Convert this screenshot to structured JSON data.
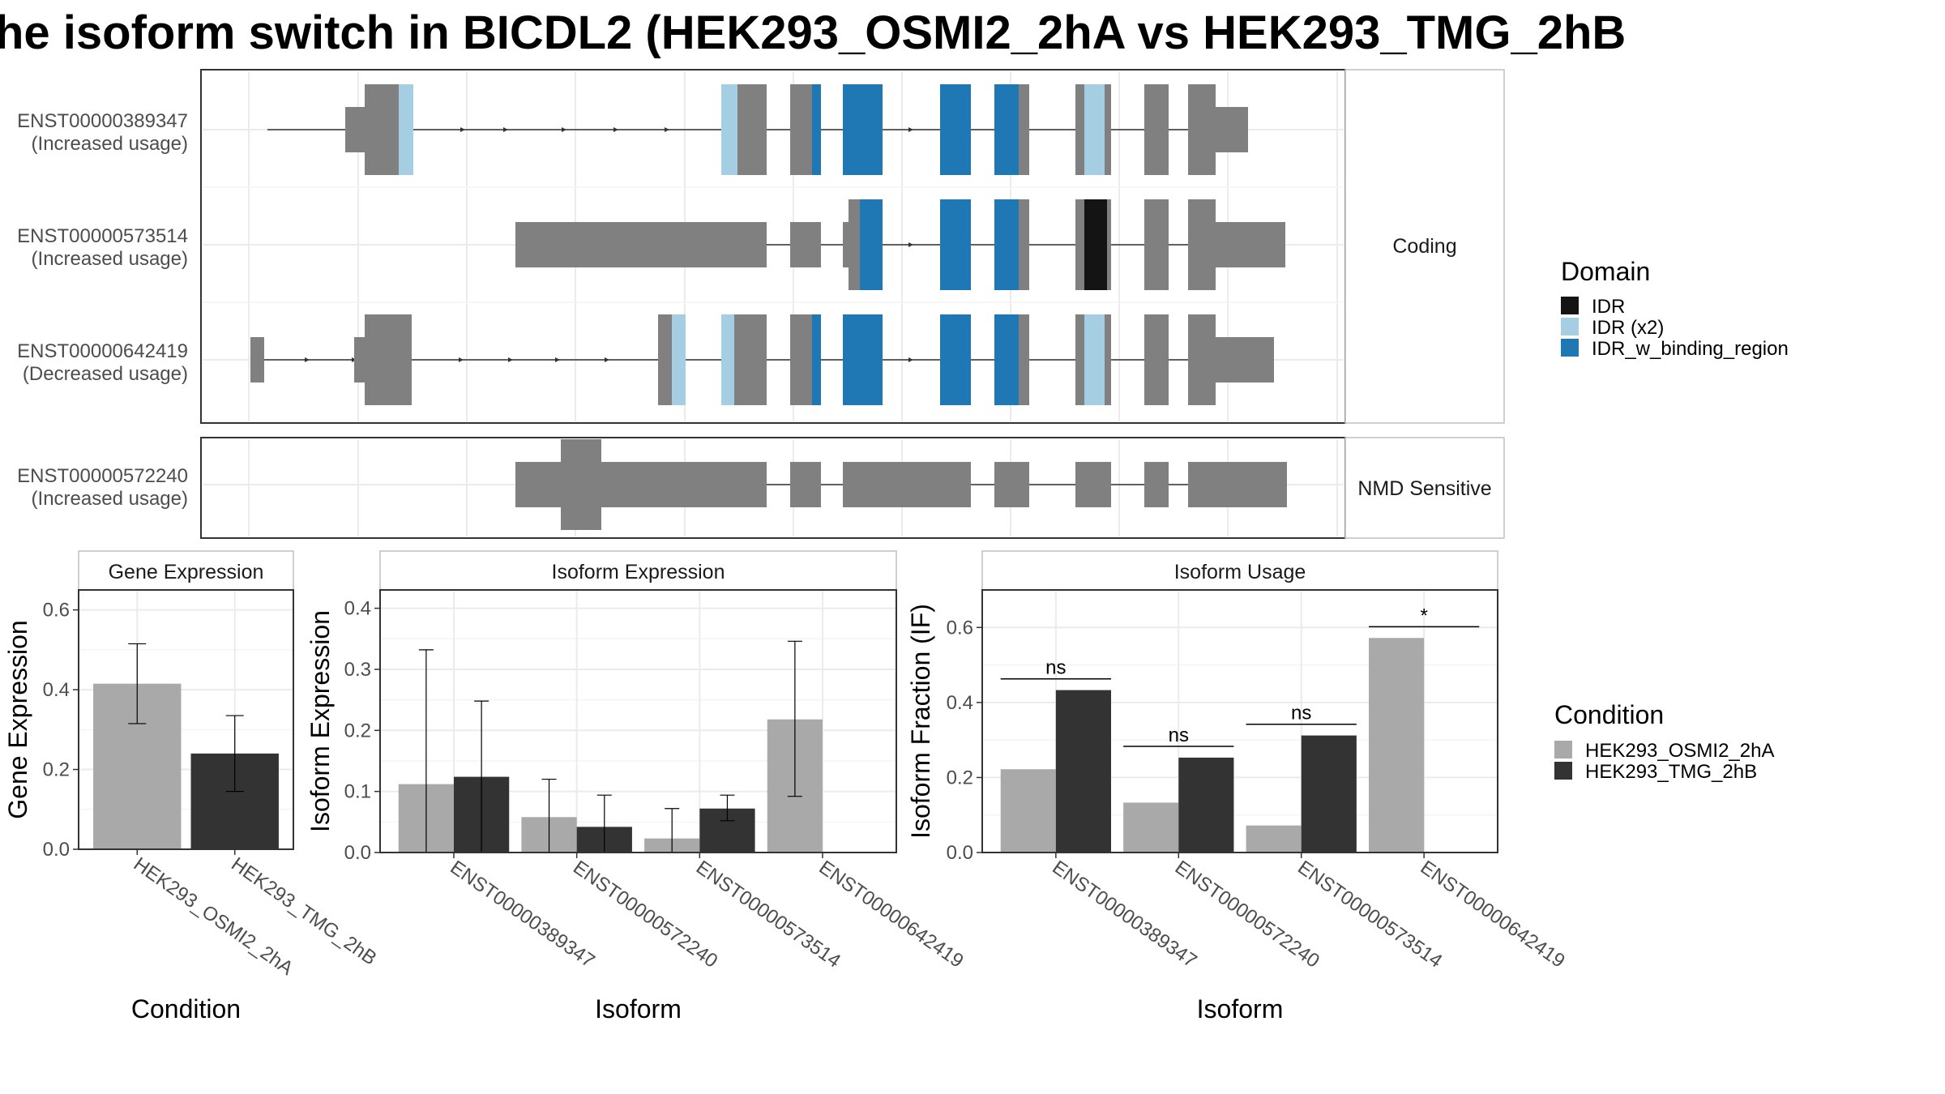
{
  "title": "he isoform switch in BICDL2 (HEK293_OSMI2_2hA vs HEK293_TMG_2hB",
  "structure_panel": {
    "coding_label": "Coding",
    "nmd_label": "NMD Sensitive",
    "transcripts": [
      {
        "id": "ENST00000389347",
        "usage": "(Increased usage)"
      },
      {
        "id": "ENST00000573514",
        "usage": "(Increased usage)"
      },
      {
        "id": "ENST00000642419",
        "usage": "(Decreased usage)"
      },
      {
        "id": "ENST00000572240",
        "usage": "(Increased usage)"
      }
    ]
  },
  "legend_domain": {
    "title": "Domain",
    "items": [
      {
        "label": "IDR",
        "color": "#141414"
      },
      {
        "label": "IDR (x2)",
        "color": "#a6cee3"
      },
      {
        "label": "IDR_w_binding_region",
        "color": "#1f78b4"
      }
    ]
  },
  "legend_condition": {
    "title": "Condition",
    "items": [
      {
        "label": "HEK293_OSMI2_2hA",
        "color": "#a9a9a9"
      },
      {
        "label": "HEK293_TMG_2hB",
        "color": "#333333"
      }
    ]
  },
  "chart_data": [
    {
      "type": "bar",
      "title": "Gene Expression",
      "xlabel": "Condition",
      "ylabel": "Gene Expression",
      "ylim": [
        0,
        0.65
      ],
      "yticks": [
        "0.0",
        "0.2",
        "0.4",
        "0.6"
      ],
      "categories": [
        "HEK293_OSMI2_2hA",
        "HEK293_TMG_2hB"
      ],
      "values": [
        0.415,
        0.24
      ],
      "errors": [
        [
          0.315,
          0.515
        ],
        [
          0.145,
          0.335
        ]
      ]
    },
    {
      "type": "bar",
      "title": "Isoform Expression",
      "xlabel": "Isoform",
      "ylabel": "Isoform Expression",
      "ylim": [
        0,
        0.43
      ],
      "yticks": [
        "0.0",
        "0.1",
        "0.2",
        "0.3",
        "0.4"
      ],
      "categories": [
        "ENST00000389347",
        "ENST00000572240",
        "ENST00000573514",
        "ENST00000642419"
      ],
      "series": [
        {
          "name": "HEK293_OSMI2_2hA",
          "values": [
            0.112,
            0.058,
            0.023,
            0.218
          ],
          "errors": [
            [
              0.0,
              0.332
            ],
            [
              0.0,
              0.12
            ],
            [
              0.0,
              0.072
            ],
            [
              0.092,
              0.346
            ]
          ]
        },
        {
          "name": "HEK293_TMG_2hB",
          "values": [
            0.124,
            0.042,
            0.072,
            0.0
          ],
          "errors": [
            [
              0.0,
              0.248
            ],
            [
              0.0,
              0.094
            ],
            [
              0.052,
              0.094
            ],
            [
              0.0,
              0.0
            ]
          ]
        }
      ]
    },
    {
      "type": "bar",
      "title": "Isoform Usage",
      "xlabel": "Isoform",
      "ylabel": "Isoform Fraction (IF)",
      "ylim": [
        0,
        0.7
      ],
      "yticks": [
        "0.0",
        "0.2",
        "0.4",
        "0.6"
      ],
      "categories": [
        "ENST00000389347",
        "ENST00000572240",
        "ENST00000573514",
        "ENST00000642419"
      ],
      "series": [
        {
          "name": "HEK293_OSMI2_2hA",
          "values": [
            0.222,
            0.133,
            0.072,
            0.572
          ]
        },
        {
          "name": "HEK293_TMG_2hB",
          "values": [
            0.433,
            0.253,
            0.312,
            0.0
          ]
        }
      ],
      "annotations": [
        {
          "category": "ENST00000389347",
          "label": "ns",
          "y": 0.463
        },
        {
          "category": "ENST00000572240",
          "label": "ns",
          "y": 0.283
        },
        {
          "category": "ENST00000573514",
          "label": "ns",
          "y": 0.342
        },
        {
          "category": "ENST00000642419",
          "label": "*",
          "y": 0.602
        }
      ]
    }
  ]
}
